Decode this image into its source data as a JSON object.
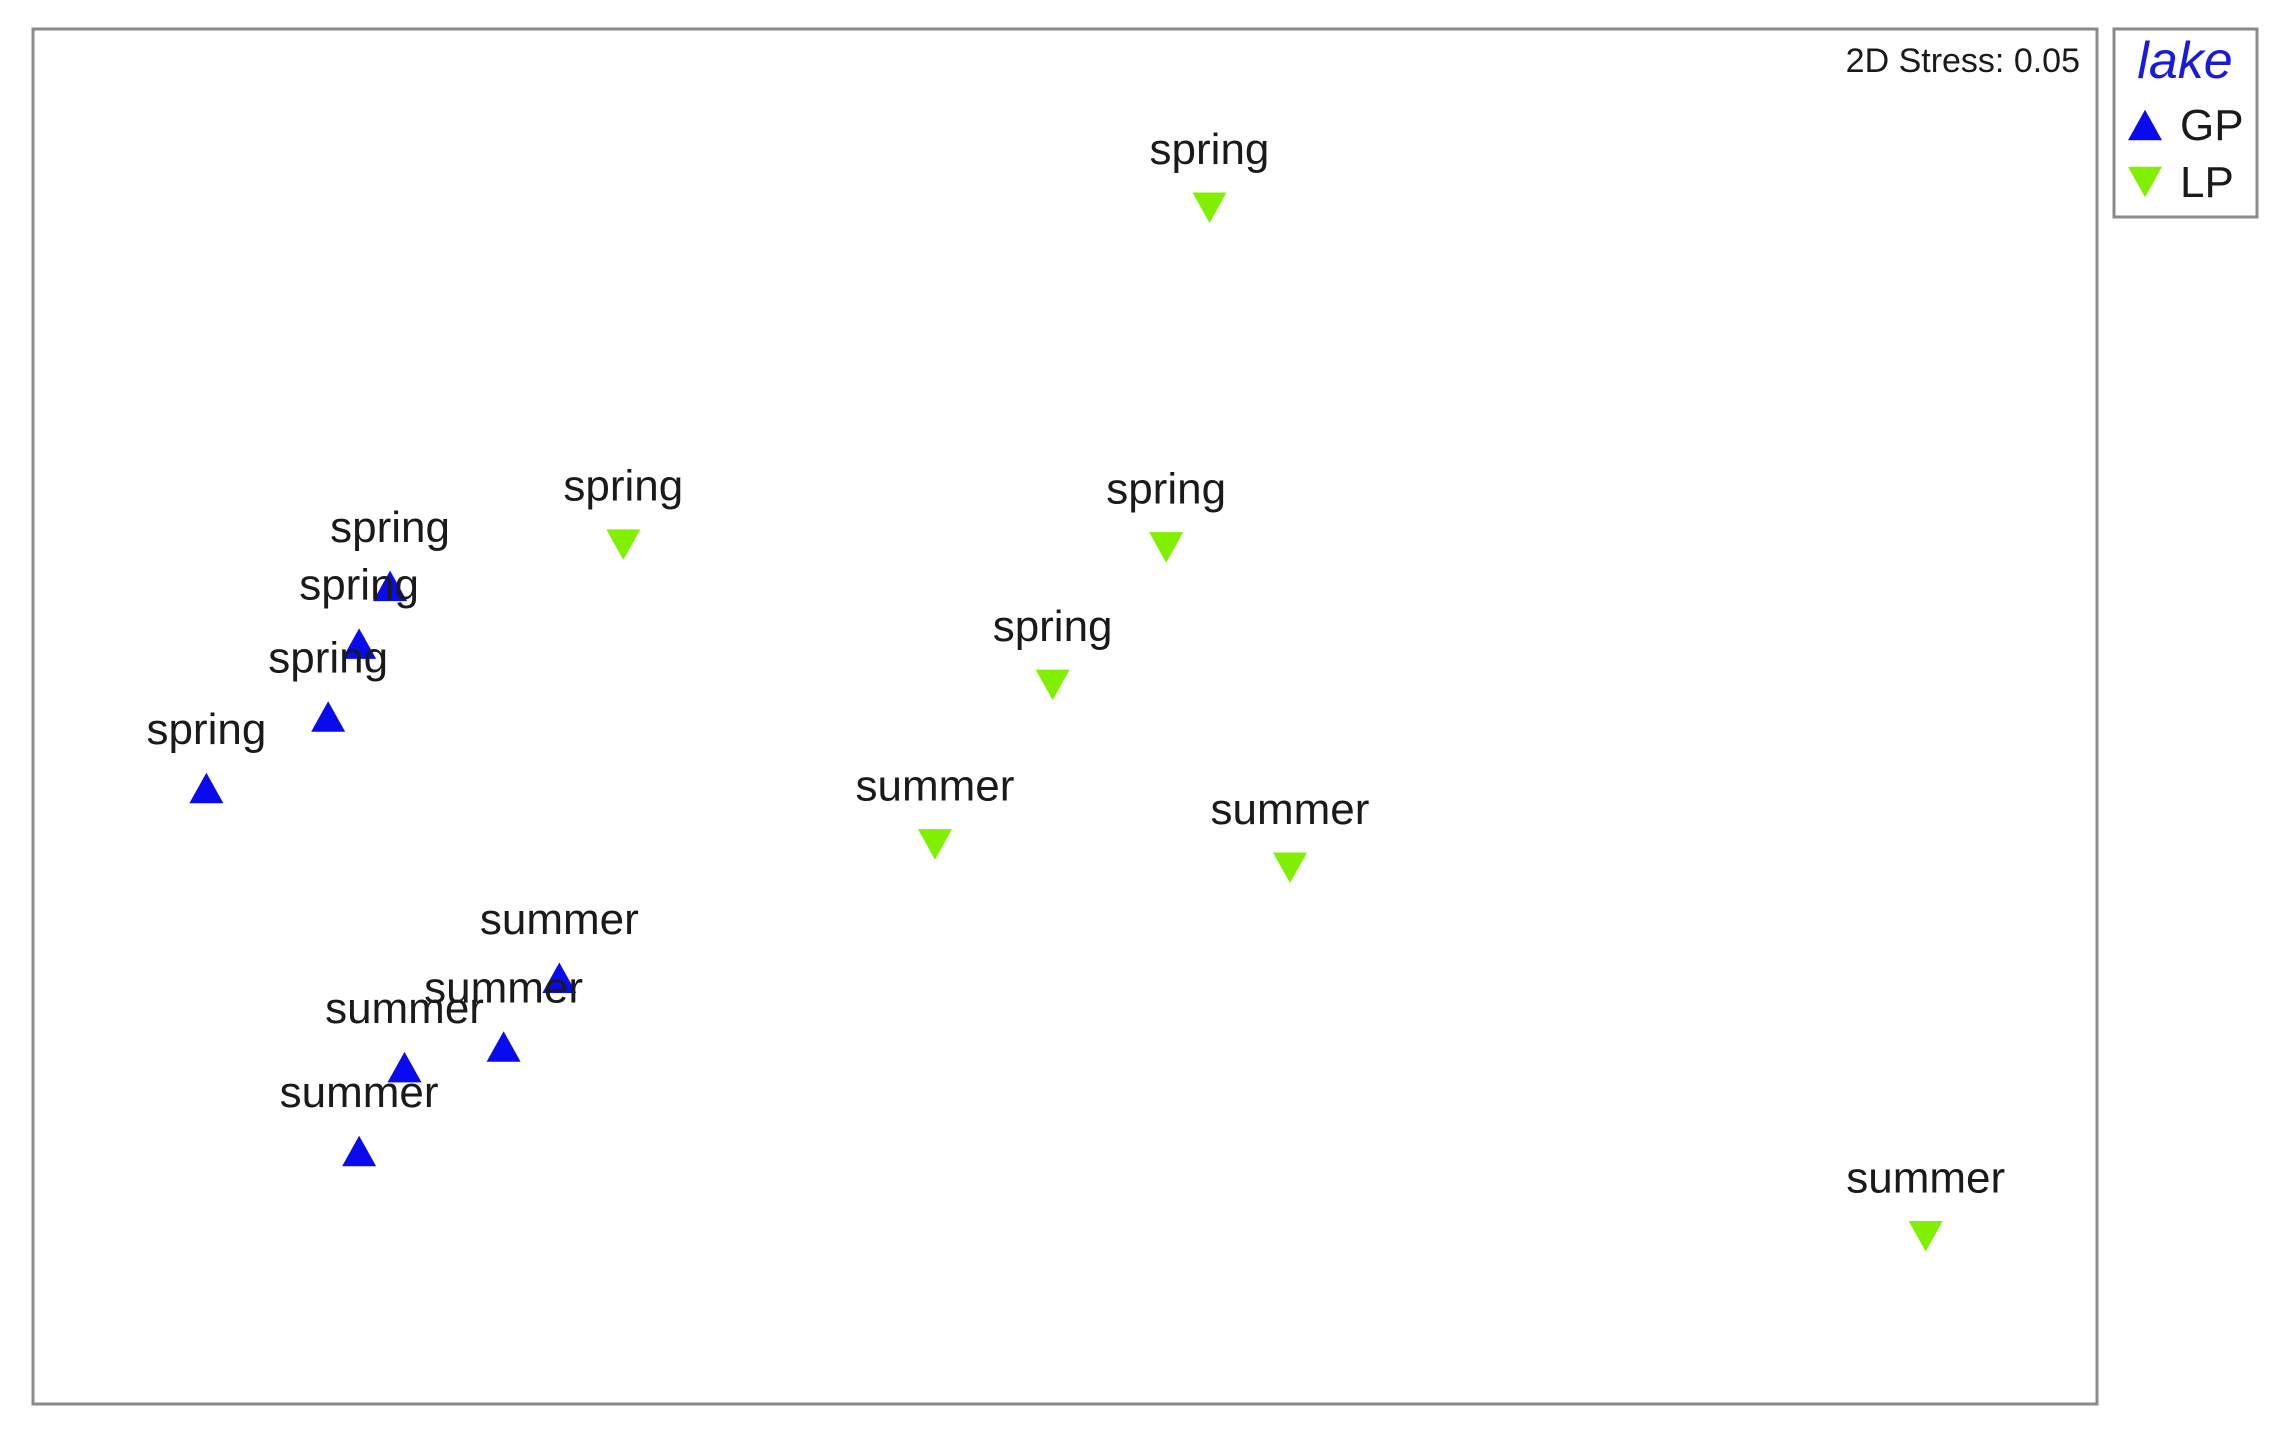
{
  "chart_data": {
    "type": "scatter",
    "title": "",
    "xlabel": "",
    "ylabel": "",
    "xlim": [
      0,
      100
    ],
    "ylim": [
      0,
      100
    ],
    "grid": false,
    "stress_label": "2D Stress: 0.05",
    "legend": {
      "title": "lake",
      "title_color": "#1a1adc",
      "position": "outside-top-right",
      "entries": [
        {
          "name": "GP",
          "marker": "triangle-up",
          "color": "#0a0aef"
        },
        {
          "name": "LP",
          "marker": "triangle-down",
          "color": "#80f000"
        }
      ]
    },
    "series": [
      {
        "name": "GP",
        "marker": "triangle-up",
        "color": "#0a0aef",
        "points": [
          {
            "x": 17.3,
            "y": 59.5,
            "label": "spring"
          },
          {
            "x": 15.8,
            "y": 55.3,
            "label": "spring"
          },
          {
            "x": 14.3,
            "y": 50.0,
            "label": "spring"
          },
          {
            "x": 8.4,
            "y": 44.8,
            "label": "spring"
          },
          {
            "x": 25.5,
            "y": 31.0,
            "label": "summer"
          },
          {
            "x": 22.8,
            "y": 26.0,
            "label": "summer"
          },
          {
            "x": 18.0,
            "y": 24.5,
            "label": "summer"
          },
          {
            "x": 15.8,
            "y": 18.4,
            "label": "summer"
          }
        ]
      },
      {
        "name": "LP",
        "marker": "triangle-down",
        "color": "#80f000",
        "points": [
          {
            "x": 57.0,
            "y": 87.0,
            "label": "spring"
          },
          {
            "x": 28.6,
            "y": 62.5,
            "label": "spring"
          },
          {
            "x": 54.9,
            "y": 62.3,
            "label": "spring"
          },
          {
            "x": 49.4,
            "y": 52.3,
            "label": "spring"
          },
          {
            "x": 43.7,
            "y": 40.7,
            "label": "summer"
          },
          {
            "x": 60.9,
            "y": 39.0,
            "label": "summer"
          },
          {
            "x": 91.7,
            "y": 12.2,
            "label": "summer"
          }
        ]
      }
    ]
  }
}
